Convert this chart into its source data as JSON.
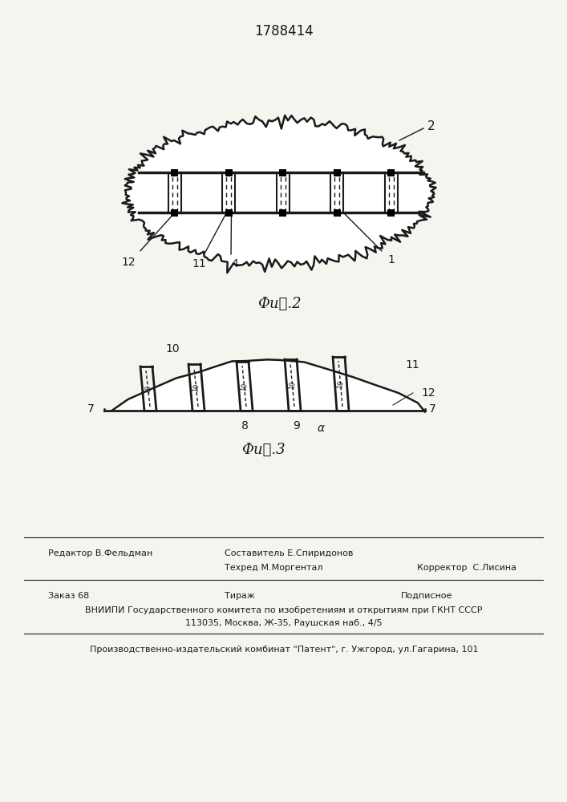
{
  "patent_number": "1788414",
  "fig2_caption": "Фи␲.2",
  "fig3_caption": "Фи␲.3",
  "bg_color": "#f5f5f0",
  "line_color": "#1a1a1a",
  "footer_line1_left": "Редактор В.Фельдман",
  "footer_line1_center": "Составитель Е.Спиридонов",
  "footer_line1_right": "",
  "footer_line2_left": "",
  "footer_line2_center": "Техред М.Моргентал",
  "footer_line2_right": "Корректор  С.Лисина",
  "footer_line3_left": "Заказ 68",
  "footer_line3_center": "Тираж",
  "footer_line3_right": "Подписное",
  "footer_line4": "ВНИИПИ Государственного комитета по изобретениям и открытиям при ГКНТ СССР",
  "footer_line5": "113035, Москва, Ж-35, Раушская наб., 4/5",
  "footer_line6": "Производственно-издательский комбинат \"Патент\", г. Ужгород, ул.Гагарина, 101"
}
